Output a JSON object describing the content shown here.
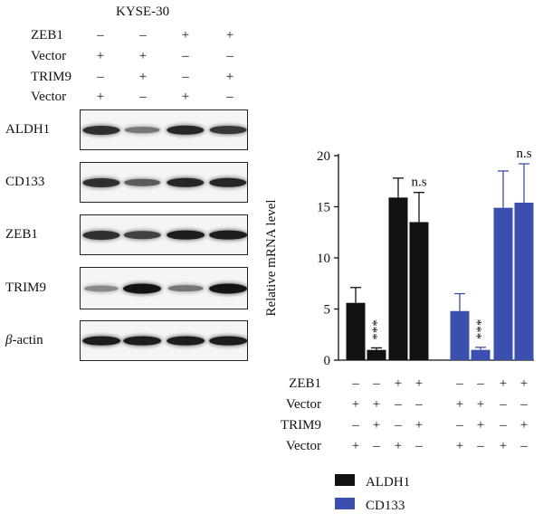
{
  "blot": {
    "cell_line": "KYSE-30",
    "conditions": [
      {
        "label": "ZEB1",
        "signs": [
          "–",
          "–",
          "+",
          "+"
        ]
      },
      {
        "label": "Vector",
        "signs": [
          "+",
          "+",
          "–",
          "–"
        ]
      },
      {
        "label": "TRIM9",
        "signs": [
          "–",
          "+",
          "–",
          "+"
        ]
      },
      {
        "label": "Vector",
        "signs": [
          "+",
          "–",
          "+",
          "–"
        ]
      }
    ],
    "proteins": [
      {
        "label": "ALDH1",
        "intensity": [
          0.85,
          0.45,
          0.9,
          0.8
        ]
      },
      {
        "label": "CD133",
        "intensity": [
          0.85,
          0.6,
          0.9,
          0.9
        ]
      },
      {
        "label": "ZEB1",
        "intensity": [
          0.85,
          0.75,
          0.95,
          0.95
        ]
      },
      {
        "label": "TRIM9",
        "intensity": [
          0.35,
          1.0,
          0.45,
          1.0
        ]
      },
      {
        "label": "-actin",
        "prefix": "β",
        "intensity": [
          0.95,
          0.95,
          0.95,
          0.95
        ]
      }
    ]
  },
  "chart_data": {
    "type": "bar",
    "ylabel": "Relative mRNA level",
    "ylim": [
      0,
      20
    ],
    "yticks": [
      "0",
      "5",
      "10",
      "15",
      "20"
    ],
    "groups": [
      {
        "name": "ALDH1",
        "color": "#111111",
        "values": [
          5.6,
          1.0,
          15.9,
          13.5
        ],
        "errors": [
          1.5,
          0.2,
          1.9,
          2.9
        ],
        "annotations": [
          "",
          "***",
          "",
          "n.s"
        ]
      },
      {
        "name": "CD133",
        "color": "#3a4fae",
        "values": [
          4.8,
          1.0,
          14.9,
          15.4
        ],
        "errors": [
          1.7,
          0.25,
          3.6,
          3.8
        ],
        "annotations": [
          "",
          "***",
          "",
          "n.s"
        ]
      }
    ],
    "conditions": [
      {
        "label": "ZEB1",
        "signs": [
          "–",
          "–",
          "+",
          "+",
          "–",
          "–",
          "+",
          "+"
        ]
      },
      {
        "label": "Vector",
        "signs": [
          "+",
          "+",
          "–",
          "–",
          "+",
          "+",
          "–",
          "–"
        ]
      },
      {
        "label": "TRIM9",
        "signs": [
          "–",
          "+",
          "–",
          "+",
          "–",
          "+",
          "–",
          "+"
        ]
      },
      {
        "label": "Vector",
        "signs": [
          "+",
          "–",
          "+",
          "–",
          "+",
          "–",
          "+",
          "–"
        ]
      }
    ],
    "legend": {
      "placement": "bottom",
      "entries": [
        "ALDH1",
        "CD133"
      ]
    }
  }
}
